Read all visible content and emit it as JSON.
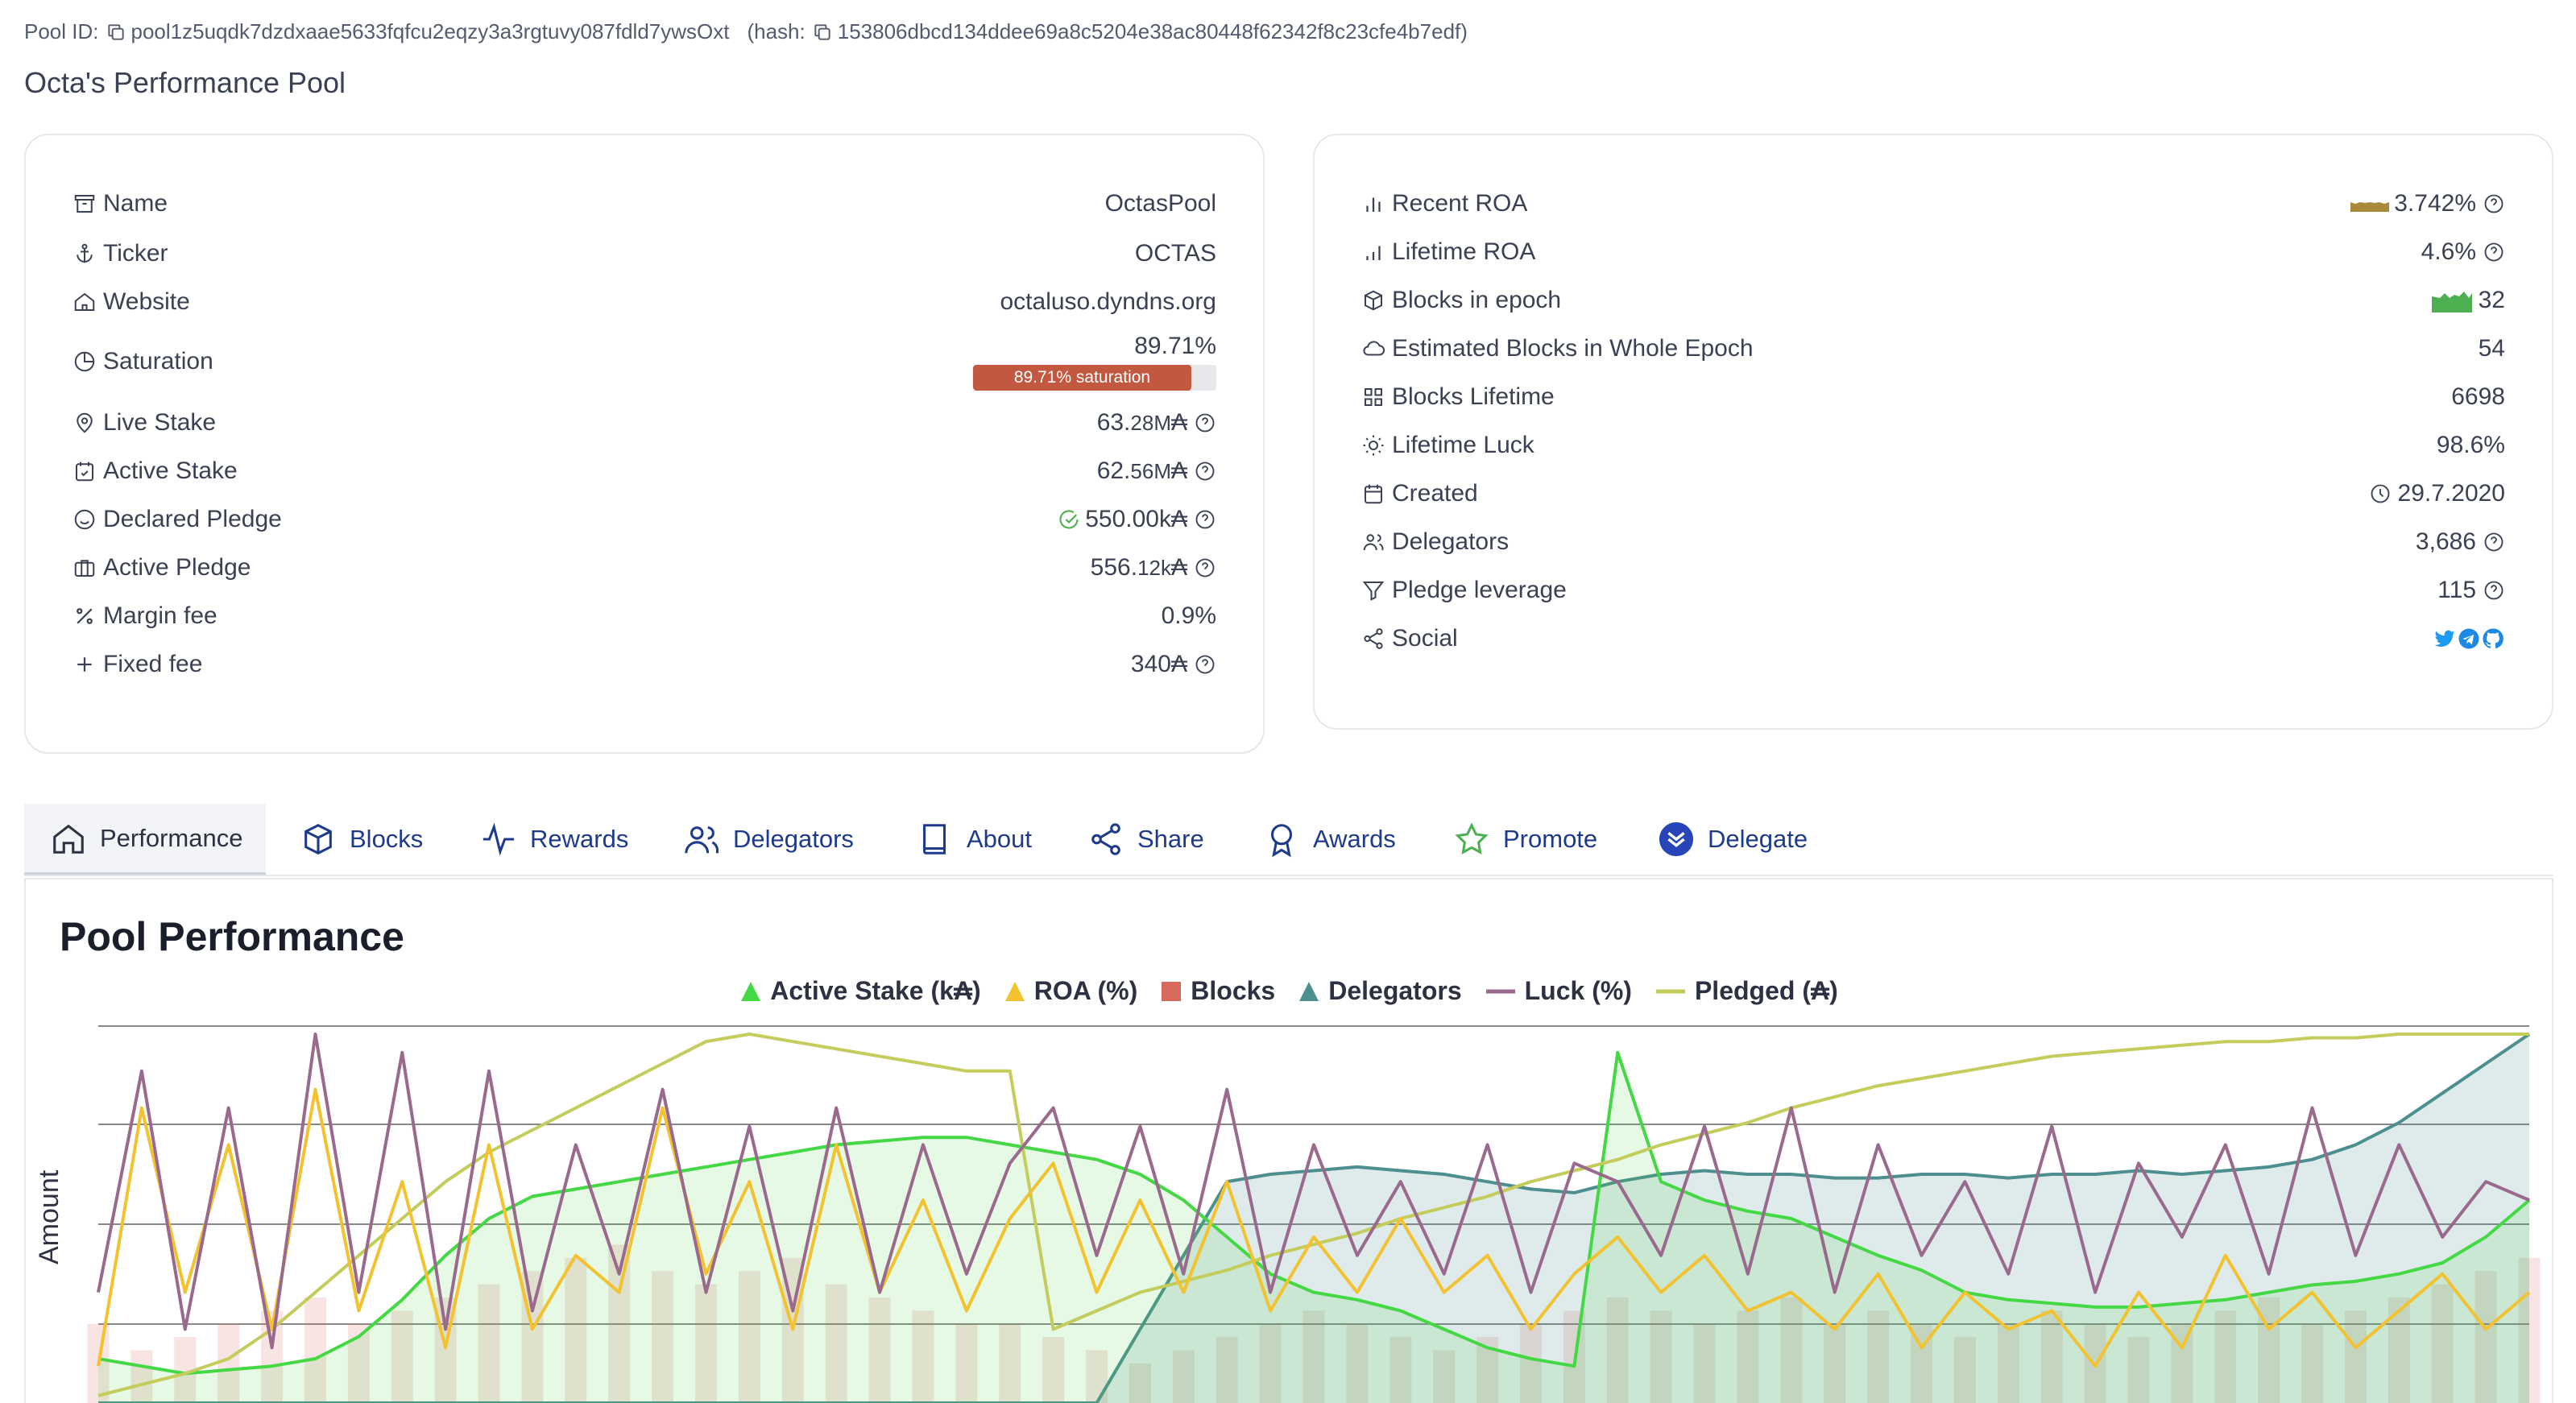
{
  "header": {
    "pool_id_label": "Pool ID:",
    "pool_id": "pool1z5uqdk7dzdxaae5633fqfcu2eqzy3a3rgtuvy087fdld7ywsOxt",
    "hash_label": "(hash:",
    "hash": "153806dbcd134ddee69a8c5204e38ac80448f62342f8c23cfe4b7edf)",
    "title": "Octa's Performance Pool"
  },
  "left_card": {
    "name": {
      "label": "Name",
      "value": "OctasPool"
    },
    "ticker": {
      "label": "Ticker",
      "value": "OCTAS"
    },
    "website": {
      "label": "Website",
      "value": "octaluso.dyndns.org"
    },
    "saturation": {
      "label": "Saturation",
      "value": "89.71%",
      "bar_text": "89.71% saturation",
      "fraction": 0.8971
    },
    "live_stake": {
      "label": "Live Stake",
      "value_main": "63.",
      "value_small": "28M",
      "value_unit": "₳"
    },
    "active_stake": {
      "label": "Active Stake",
      "value_main": "62.",
      "value_small": "56M",
      "value_unit": "₳"
    },
    "declared_pledge": {
      "label": "Declared Pledge",
      "value": "550.00k₳"
    },
    "active_pledge": {
      "label": "Active Pledge",
      "value_main": "556.",
      "value_small": "12k",
      "value_unit": "₳"
    },
    "margin_fee": {
      "label": "Margin fee",
      "value": "0.9%"
    },
    "fixed_fee": {
      "label": "Fixed fee",
      "value": "340₳"
    }
  },
  "right_card": {
    "recent_roa": {
      "label": "Recent ROA",
      "value": "3.742%"
    },
    "lifetime_roa": {
      "label": "Lifetime ROA",
      "value": "4.6%"
    },
    "blocks_in_epoch": {
      "label": "Blocks in epoch",
      "value": "32"
    },
    "estimated_blocks": {
      "label": "Estimated Blocks in Whole Epoch",
      "value": "54"
    },
    "blocks_lifetime": {
      "label": "Blocks Lifetime",
      "value": "6698"
    },
    "lifetime_luck": {
      "label": "Lifetime Luck",
      "value": "98.6%"
    },
    "created": {
      "label": "Created",
      "value": "29.7.2020"
    },
    "delegators": {
      "label": "Delegators",
      "value": "3,686"
    },
    "pledge_leverage": {
      "label": "Pledge leverage",
      "value": "115"
    },
    "social": {
      "label": "Social",
      "icons": [
        "twitter-icon",
        "telegram-icon",
        "github-icon"
      ]
    }
  },
  "tabs": [
    {
      "label": "Performance",
      "icon": "home-icon",
      "active": true
    },
    {
      "label": "Blocks",
      "icon": "cube-icon"
    },
    {
      "label": "Rewards",
      "icon": "activity-icon"
    },
    {
      "label": "Delegators",
      "icon": "users-icon"
    },
    {
      "label": "About",
      "icon": "book-icon"
    },
    {
      "label": "Share",
      "icon": "share-icon"
    },
    {
      "label": "Awards",
      "icon": "award-icon"
    },
    {
      "label": "Promote",
      "icon": "star-icon"
    },
    {
      "label": "Delegate",
      "icon": "delegate-icon"
    }
  ],
  "performance": {
    "title": "Pool Performance",
    "legend": [
      {
        "label": "Active Stake (k₳)",
        "color": "#44d844",
        "shape": "triangle"
      },
      {
        "label": "ROA (%)",
        "color": "#f2c230",
        "shape": "triangle"
      },
      {
        "label": "Blocks",
        "color": "#d76a5c",
        "shape": "square"
      },
      {
        "label": "Delegators",
        "color": "#4d8f8f",
        "shape": "triangle"
      },
      {
        "label": "Luck (%)",
        "color": "#9a6a8e",
        "shape": "line"
      },
      {
        "label": "Pledged (₳)",
        "color": "#c4cc5c",
        "shape": "line"
      }
    ],
    "ylabel": "Amount"
  },
  "chart_data": {
    "type": "line",
    "ylabel": "Amount",
    "grid": true,
    "legend_position": "top-center",
    "series": [
      {
        "name": "Active Stake (k₳)",
        "values": [
          0.12,
          0.1,
          0.08,
          0.09,
          0.1,
          0.12,
          0.18,
          0.28,
          0.4,
          0.5,
          0.56,
          0.58,
          0.6,
          0.62,
          0.64,
          0.66,
          0.68,
          0.7,
          0.71,
          0.72,
          0.72,
          0.7,
          0.68,
          0.66,
          0.62,
          0.55,
          0.45,
          0.35,
          0.3,
          0.28,
          0.25,
          0.2,
          0.15,
          0.12,
          0.1,
          0.95,
          0.6,
          0.55,
          0.52,
          0.5,
          0.45,
          0.4,
          0.36,
          0.3,
          0.28,
          0.27,
          0.26,
          0.26,
          0.27,
          0.28,
          0.3,
          0.32,
          0.33,
          0.35,
          0.38,
          0.45,
          0.55
        ]
      },
      {
        "name": "ROA (%)",
        "values": [
          0.1,
          0.8,
          0.3,
          0.7,
          0.2,
          0.85,
          0.25,
          0.6,
          0.15,
          0.7,
          0.2,
          0.4,
          0.3,
          0.8,
          0.35,
          0.6,
          0.2,
          0.7,
          0.3,
          0.55,
          0.25,
          0.5,
          0.65,
          0.3,
          0.55,
          0.3,
          0.6,
          0.25,
          0.45,
          0.3,
          0.5,
          0.3,
          0.4,
          0.2,
          0.35,
          0.45,
          0.3,
          0.4,
          0.25,
          0.3,
          0.2,
          0.35,
          0.15,
          0.3,
          0.2,
          0.25,
          0.1,
          0.3,
          0.15,
          0.4,
          0.2,
          0.3,
          0.15,
          0.25,
          0.35,
          0.2,
          0.3
        ]
      },
      {
        "name": "Delegators",
        "values": [
          0,
          0,
          0,
          0,
          0,
          0,
          0,
          0,
          0,
          0,
          0,
          0,
          0,
          0,
          0,
          0,
          0,
          0,
          0,
          0,
          0,
          0,
          0,
          0,
          0.2,
          0.4,
          0.6,
          0.62,
          0.63,
          0.64,
          0.63,
          0.62,
          0.6,
          0.58,
          0.57,
          0.6,
          0.62,
          0.63,
          0.62,
          0.62,
          0.61,
          0.61,
          0.62,
          0.62,
          0.61,
          0.62,
          0.62,
          0.63,
          0.62,
          0.63,
          0.64,
          0.66,
          0.7,
          0.76,
          0.84,
          0.92,
          1.0
        ]
      },
      {
        "name": "Luck (%)",
        "values": [
          0.3,
          0.9,
          0.2,
          0.8,
          0.15,
          1.0,
          0.3,
          0.95,
          0.2,
          0.9,
          0.25,
          0.7,
          0.35,
          0.85,
          0.3,
          0.75,
          0.25,
          0.8,
          0.3,
          0.7,
          0.35,
          0.65,
          0.8,
          0.4,
          0.75,
          0.35,
          0.85,
          0.3,
          0.7,
          0.4,
          0.6,
          0.35,
          0.7,
          0.3,
          0.65,
          0.6,
          0.4,
          0.75,
          0.35,
          0.8,
          0.3,
          0.7,
          0.4,
          0.6,
          0.35,
          0.75,
          0.3,
          0.65,
          0.45,
          0.7,
          0.35,
          0.8,
          0.4,
          0.7,
          0.45,
          0.6,
          0.55
        ]
      },
      {
        "name": "Pledged (₳)",
        "values": [
          0.02,
          0.05,
          0.08,
          0.12,
          0.2,
          0.3,
          0.4,
          0.5,
          0.6,
          0.68,
          0.74,
          0.8,
          0.86,
          0.92,
          0.98,
          1.0,
          0.98,
          0.96,
          0.94,
          0.92,
          0.9,
          0.9,
          0.2,
          0.25,
          0.3,
          0.33,
          0.36,
          0.4,
          0.43,
          0.46,
          0.5,
          0.53,
          0.56,
          0.6,
          0.63,
          0.66,
          0.7,
          0.73,
          0.76,
          0.8,
          0.83,
          0.86,
          0.88,
          0.9,
          0.92,
          0.94,
          0.95,
          0.96,
          0.97,
          0.98,
          0.98,
          0.99,
          0.99,
          1.0,
          1.0,
          1.0,
          1.0
        ]
      },
      {
        "name": "Blocks",
        "values": [
          0.3,
          0.2,
          0.25,
          0.3,
          0.35,
          0.4,
          0.3,
          0.35,
          0.4,
          0.45,
          0.5,
          0.55,
          0.6,
          0.5,
          0.45,
          0.5,
          0.55,
          0.45,
          0.4,
          0.35,
          0.3,
          0.3,
          0.25,
          0.2,
          0.15,
          0.2,
          0.25,
          0.3,
          0.35,
          0.3,
          0.25,
          0.2,
          0.25,
          0.3,
          0.35,
          0.4,
          0.35,
          0.3,
          0.35,
          0.4,
          0.3,
          0.35,
          0.3,
          0.25,
          0.3,
          0.35,
          0.3,
          0.25,
          0.3,
          0.35,
          0.4,
          0.3,
          0.35,
          0.4,
          0.45,
          0.5,
          0.55
        ]
      }
    ]
  }
}
